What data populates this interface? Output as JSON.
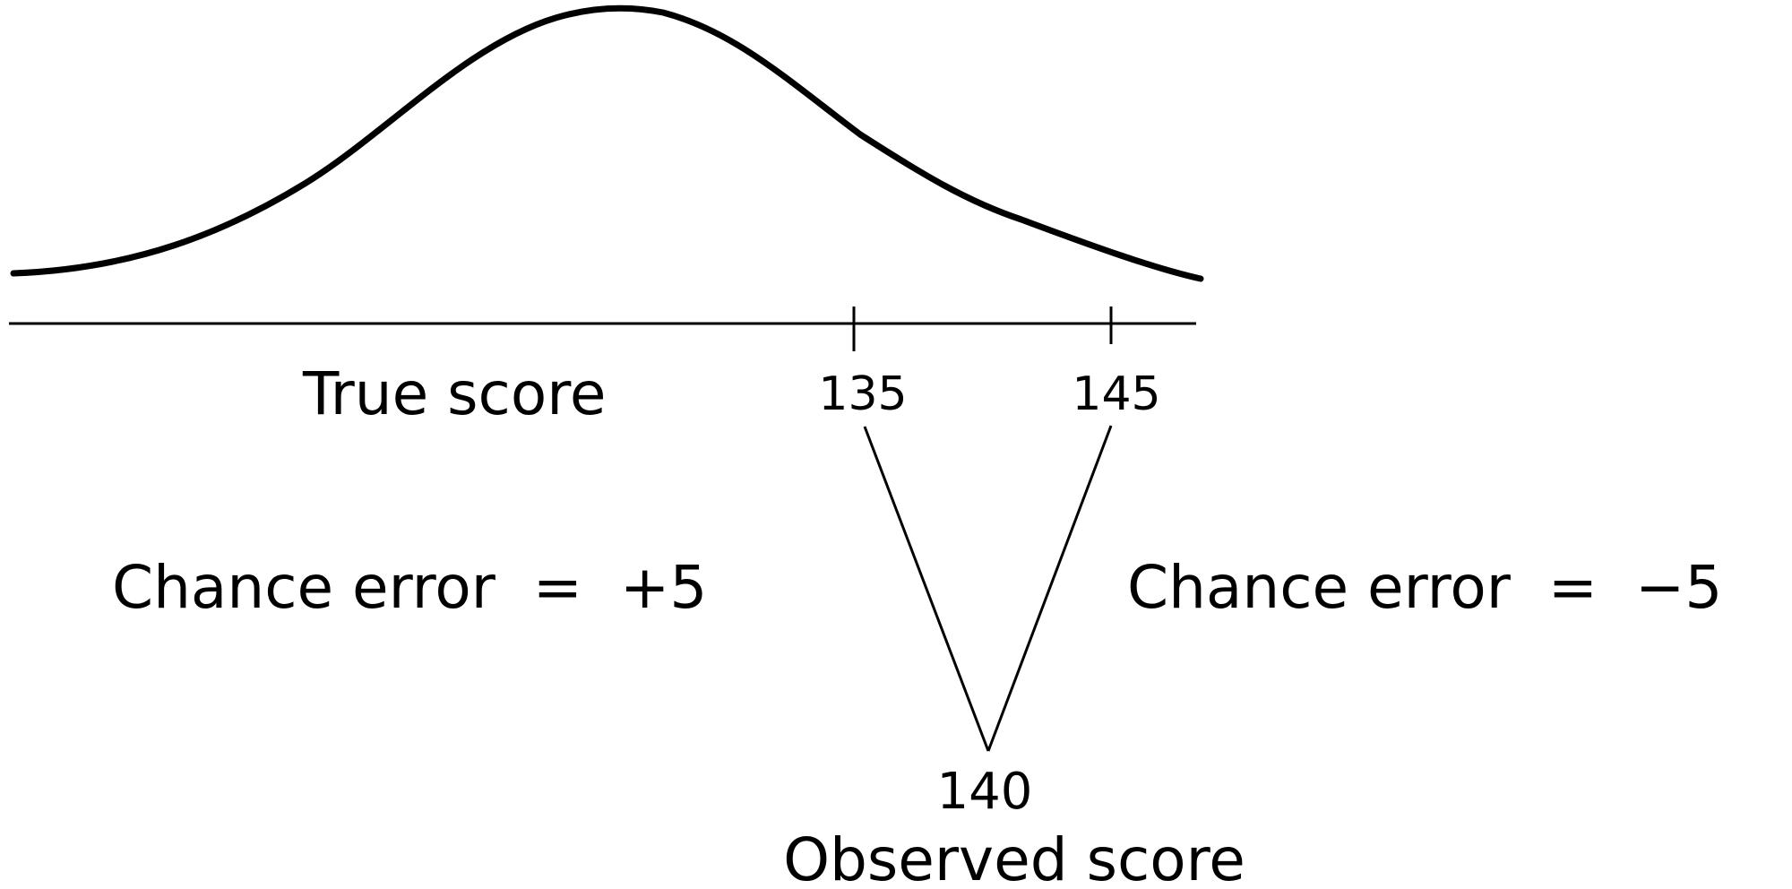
{
  "diagram": {
    "curve_label": "True score",
    "tick_left": "135",
    "tick_right": "145",
    "left_annotation": "Chance error  =  +5",
    "right_annotation": "Chance error  =  −5",
    "observed_value": "140",
    "observed_label": "Observed score"
  },
  "colors": {
    "ink": "#000000",
    "background": "#ffffff"
  }
}
